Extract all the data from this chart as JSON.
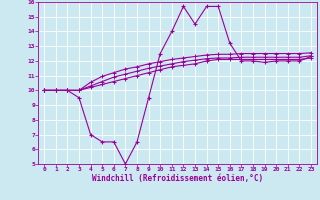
{
  "xlabel": "Windchill (Refroidissement éolien,°C)",
  "x": [
    0,
    1,
    2,
    3,
    4,
    5,
    6,
    7,
    8,
    9,
    10,
    11,
    12,
    13,
    14,
    15,
    16,
    17,
    18,
    19,
    20,
    21,
    22,
    23
  ],
  "line1": [
    10,
    10,
    10,
    9.5,
    7,
    6.5,
    6.5,
    5,
    6.5,
    9.5,
    12.5,
    14,
    15.7,
    14.5,
    15.7,
    15.7,
    13.2,
    12,
    12,
    11.9,
    12,
    12,
    12,
    12.3
  ],
  "line2": [
    10,
    10,
    10,
    10,
    10.2,
    10.4,
    10.6,
    10.8,
    11.0,
    11.2,
    11.4,
    11.6,
    11.7,
    11.8,
    12.0,
    12.1,
    12.1,
    12.1,
    12.1,
    12.1,
    12.1,
    12.1,
    12.1,
    12.2
  ],
  "line3": [
    10,
    10,
    10,
    10,
    10.3,
    10.6,
    10.9,
    11.1,
    11.3,
    11.5,
    11.65,
    11.8,
    11.95,
    12.05,
    12.15,
    12.2,
    12.2,
    12.25,
    12.25,
    12.25,
    12.25,
    12.25,
    12.25,
    12.35
  ],
  "line4": [
    10,
    10,
    10,
    10,
    10.55,
    10.95,
    11.2,
    11.45,
    11.6,
    11.8,
    11.95,
    12.1,
    12.2,
    12.3,
    12.4,
    12.45,
    12.45,
    12.5,
    12.5,
    12.5,
    12.5,
    12.5,
    12.5,
    12.55
  ],
  "bg_color": "#cce8f0",
  "line_color": "#990099",
  "grid_color": "#ffffff",
  "ylim": [
    5,
    16
  ],
  "xlim": [
    -0.5,
    23.5
  ],
  "yticks": [
    5,
    6,
    7,
    8,
    9,
    10,
    11,
    12,
    13,
    14,
    15,
    16
  ],
  "xticks": [
    0,
    1,
    2,
    3,
    4,
    5,
    6,
    7,
    8,
    9,
    10,
    11,
    12,
    13,
    14,
    15,
    16,
    17,
    18,
    19,
    20,
    21,
    22,
    23
  ]
}
